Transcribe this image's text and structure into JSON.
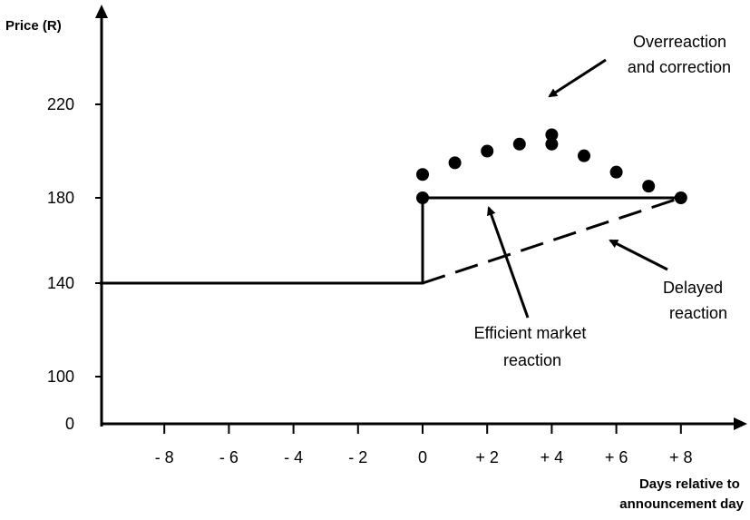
{
  "chart_data": {
    "type": "line",
    "ylabel": "Price (R)",
    "xlabel_lines": [
      "Days relative to",
      "announcement day"
    ],
    "x_ticks": [
      "- 8",
      "- 6",
      "- 4",
      "- 2",
      "0",
      "+ 2",
      "+ 4",
      "+ 6",
      "+ 8"
    ],
    "x_tick_values": [
      -8,
      -6,
      -4,
      -2,
      0,
      2,
      4,
      6,
      8
    ],
    "y_ticks": [
      "0",
      "100",
      "140",
      "180",
      "220"
    ],
    "series": [
      {
        "style": "solid",
        "x": [
          -10,
          0,
          0,
          8
        ],
        "y": [
          140,
          140,
          180,
          180
        ]
      },
      {
        "style": "dashed",
        "x": [
          0,
          8
        ],
        "y": [
          140,
          180
        ]
      },
      {
        "style": "dotted",
        "x": [
          0,
          0,
          1,
          2,
          3,
          4,
          4,
          5,
          6,
          7,
          8
        ],
        "y": [
          180,
          190,
          195,
          200,
          203,
          207,
          203,
          198,
          191,
          185,
          180
        ]
      }
    ],
    "annotations": [
      {
        "lines": [
          "Overreaction",
          "and correction"
        ]
      },
      {
        "lines": [
          "Efficient market",
          "reaction"
        ]
      },
      {
        "lines": [
          "Delayed",
          "reaction"
        ]
      }
    ]
  }
}
